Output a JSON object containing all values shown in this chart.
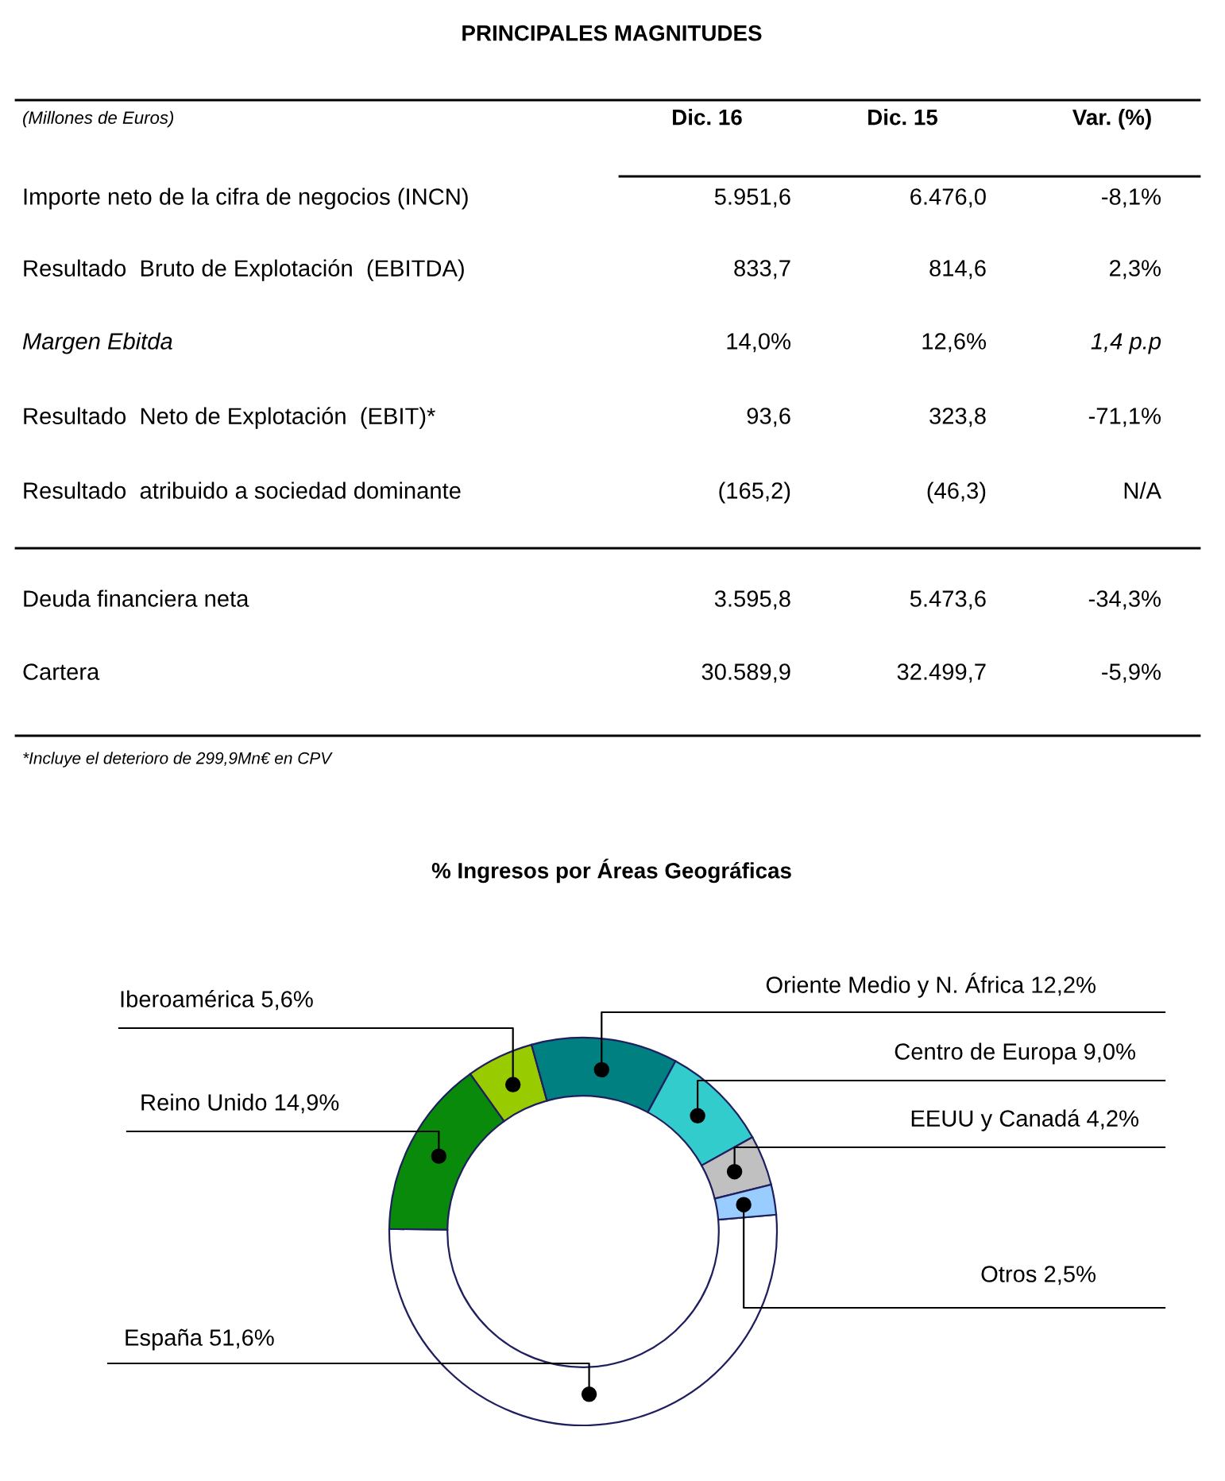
{
  "chart_data": [
    {
      "type": "other",
      "title": "PRINCIPALES MAGNITUDES",
      "annotations": [
        "(Millones de Euros)",
        "Dic. 16",
        "Dic. 15",
        "Var. (%)",
        "Importe neto de la cifra de negocios (INCN)",
        "5.951,6",
        "6.476,0",
        "-8,1%",
        "Resultado  Bruto de Explotación  (EBITDA)",
        "833,7",
        "814,6",
        "2,3%",
        "Margen Ebitda",
        "14,0%",
        "12,6%",
        "1,4 p.p",
        "Resultado  Neto de Explotación  (EBIT)*",
        "93,6",
        "323,8",
        "-71,1%",
        "Resultado  atribuido a sociedad dominante",
        "(165,2)",
        "(46,3)",
        "N/A",
        "Deuda financiera neta",
        "3.595,8",
        "5.473,6",
        "-34,3%",
        "Cartera",
        "30.589,9",
        "32.499,7",
        "-5,9%",
        "*Incluye el deterioro de 299,9Mn€ en CPV"
      ]
    },
    {
      "type": "donut",
      "title": "% Ingresos por Áreas Geográficas",
      "categories": [
        "España",
        "Reino Unido",
        "Iberoamérica",
        "Oriente Medio y N. África",
        "Centro de Europa",
        "EEUU y Canadá",
        "Otros"
      ],
      "values": [
        51.6,
        14.9,
        5.6,
        12.2,
        9.0,
        4.2,
        2.5
      ],
      "value_labels": [
        "51,6%",
        "14,9%",
        "5,6%",
        "12,2%",
        "9,0%",
        "4,2%",
        "2,5%"
      ],
      "colors": [
        "#ffffff",
        "#0a8a0a",
        "#99cc00",
        "#008080",
        "#33cccc",
        "#c0c0c0",
        "#99ccff"
      ]
    }
  ]
}
